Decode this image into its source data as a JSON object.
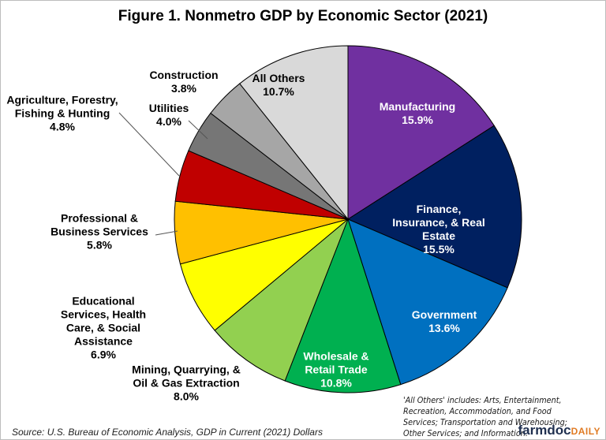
{
  "chart_data": {
    "type": "pie",
    "title": "Figure 1. Nonmetro GDP by Economic Sector (2021)",
    "start": "12 o'clock, clockwise",
    "slices": [
      {
        "name": "Manufacturing",
        "value": 15.9,
        "label": "15.9%",
        "color": "#7030A0"
      },
      {
        "name": "Finance, Insurance, & Real Estate",
        "value": 15.5,
        "label": "15.5%",
        "color": "#002060"
      },
      {
        "name": "Government",
        "value": 13.6,
        "label": "13.6%",
        "color": "#0070C0"
      },
      {
        "name": "Wholesale & Retail Trade",
        "value": 10.8,
        "label": "10.8%",
        "color": "#00B050"
      },
      {
        "name": "Mining, Quarrying, & Oil & Gas Extraction",
        "value": 8.0,
        "label": "8.0%",
        "color": "#92D050"
      },
      {
        "name": "Educational Services, Health Care, & Social Assistance",
        "value": 6.9,
        "label": "6.9%",
        "color": "#FFFF00"
      },
      {
        "name": "Professional & Business Services",
        "value": 5.8,
        "label": "5.8%",
        "color": "#FFC000"
      },
      {
        "name": "Agriculture, Forestry, Fishing & Hunting",
        "value": 4.8,
        "label": "4.8%",
        "color": "#C00000"
      },
      {
        "name": "Utilities",
        "value": 4.0,
        "label": "4.0%",
        "color": "#767676"
      },
      {
        "name": "Construction",
        "value": 3.8,
        "label": "3.8%",
        "color": "#A6A6A6"
      },
      {
        "name": "All Others",
        "value": 10.7,
        "label": "10.7%",
        "color": "#D9D9D9"
      }
    ],
    "annotation": "'All Others' includes: Arts, Entertainment, Recreation, Accommodation, and Food Services; Transportation and Warehousing; Other Services; and Information.",
    "source": "Source: U.S. Bureau of Economic Analysis, GDP in Current (2021) Dollars"
  },
  "logo": {
    "part1": "farmdoc",
    "part2": "DAILY"
  }
}
